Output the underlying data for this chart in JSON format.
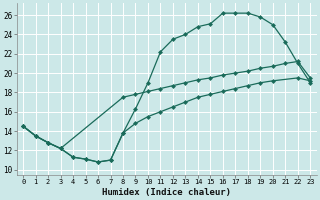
{
  "xlabel": "Humidex (Indice chaleur)",
  "bg_color": "#cce8e8",
  "grid_color": "#ffffff",
  "line_color": "#1a6b5a",
  "xlim": [
    -0.5,
    23.5
  ],
  "ylim": [
    9.5,
    27.2
  ],
  "xticks": [
    0,
    1,
    2,
    3,
    4,
    5,
    6,
    7,
    8,
    9,
    10,
    11,
    12,
    13,
    14,
    15,
    16,
    17,
    18,
    19,
    20,
    21,
    22,
    23
  ],
  "yticks": [
    10,
    12,
    14,
    16,
    18,
    20,
    22,
    24,
    26
  ],
  "line1_x": [
    0,
    1,
    2,
    3,
    4,
    5,
    6,
    7,
    8,
    9,
    10,
    11,
    12,
    13,
    14,
    15,
    16,
    17,
    18,
    19,
    20,
    21,
    22,
    23
  ],
  "line1_y": [
    14.5,
    13.5,
    12.8,
    12.2,
    11.3,
    11.1,
    10.8,
    11.0,
    13.8,
    16.3,
    19.0,
    22.2,
    23.5,
    24.0,
    24.8,
    25.1,
    26.2,
    26.2,
    26.2,
    25.8,
    25.0,
    23.2,
    21.0,
    19.0
  ],
  "line2_x": [
    0,
    1,
    2,
    3,
    8,
    9,
    10,
    11,
    12,
    13,
    14,
    15,
    16,
    17,
    18,
    19,
    20,
    21,
    22,
    23
  ],
  "line2_y": [
    14.5,
    13.5,
    12.8,
    12.2,
    17.5,
    17.8,
    18.1,
    18.4,
    18.7,
    19.0,
    19.3,
    19.5,
    19.8,
    20.0,
    20.2,
    20.5,
    20.7,
    21.0,
    21.2,
    19.5
  ],
  "line3_x": [
    0,
    1,
    2,
    3,
    4,
    5,
    6,
    7,
    8,
    9,
    10,
    11,
    12,
    13,
    14,
    15,
    16,
    17,
    18,
    19,
    20,
    22,
    23
  ],
  "line3_y": [
    14.5,
    13.5,
    12.8,
    12.2,
    11.3,
    11.1,
    10.8,
    11.0,
    13.8,
    14.8,
    15.5,
    16.0,
    16.5,
    17.0,
    17.5,
    17.8,
    18.1,
    18.4,
    18.7,
    19.0,
    19.2,
    19.5,
    19.2
  ]
}
